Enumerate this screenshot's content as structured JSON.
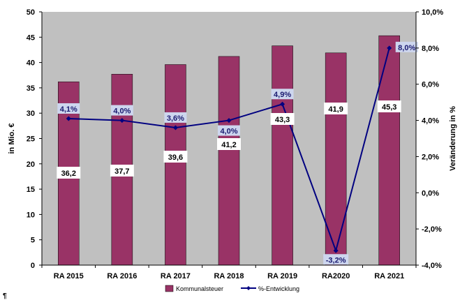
{
  "chart_data": {
    "type": "bar",
    "categories": [
      "RA 2015",
      "RA 2016",
      "RA 2017",
      "RA 2018",
      "RA 2019",
      "RA2020",
      "RA 2021"
    ],
    "series": [
      {
        "name": "Kommunalsteuer",
        "type": "bar",
        "axis": "left",
        "values": [
          36.2,
          37.7,
          39.6,
          41.2,
          43.3,
          41.9,
          45.3
        ],
        "labels": [
          "36,2",
          "37,7",
          "39,6",
          "41,2",
          "43,3",
          "41,9",
          "45,3"
        ]
      },
      {
        "name": "%-Entwicklung",
        "type": "line",
        "axis": "right",
        "values": [
          4.1,
          4.0,
          3.6,
          4.0,
          4.9,
          -3.2,
          8.0
        ],
        "labels": [
          "4,1%",
          "4,0%",
          "3,6%",
          "4,0%",
          "4,9%",
          "-3,2%",
          "8,0%"
        ]
      }
    ],
    "ylabel": "in Mio. €",
    "y2label": "Veränderung in %",
    "ylim": [
      0,
      50
    ],
    "y2lim": [
      -4,
      10
    ],
    "yticks": [
      "0",
      "5",
      "10",
      "15",
      "20",
      "25",
      "30",
      "35",
      "40",
      "45",
      "50"
    ],
    "y2ticks": [
      "-4,0%",
      "-2,0%",
      "0,0%",
      "2,0%",
      "4,0%",
      "6,0%",
      "8,0%",
      "10,0%"
    ],
    "grid": false,
    "legend": "bottom",
    "colors": {
      "bar": "#993366",
      "line": "#000080",
      "plot_bg": "#c0c0c0",
      "label_bg": "#cdd6ee"
    }
  },
  "stray_mark": "¶"
}
